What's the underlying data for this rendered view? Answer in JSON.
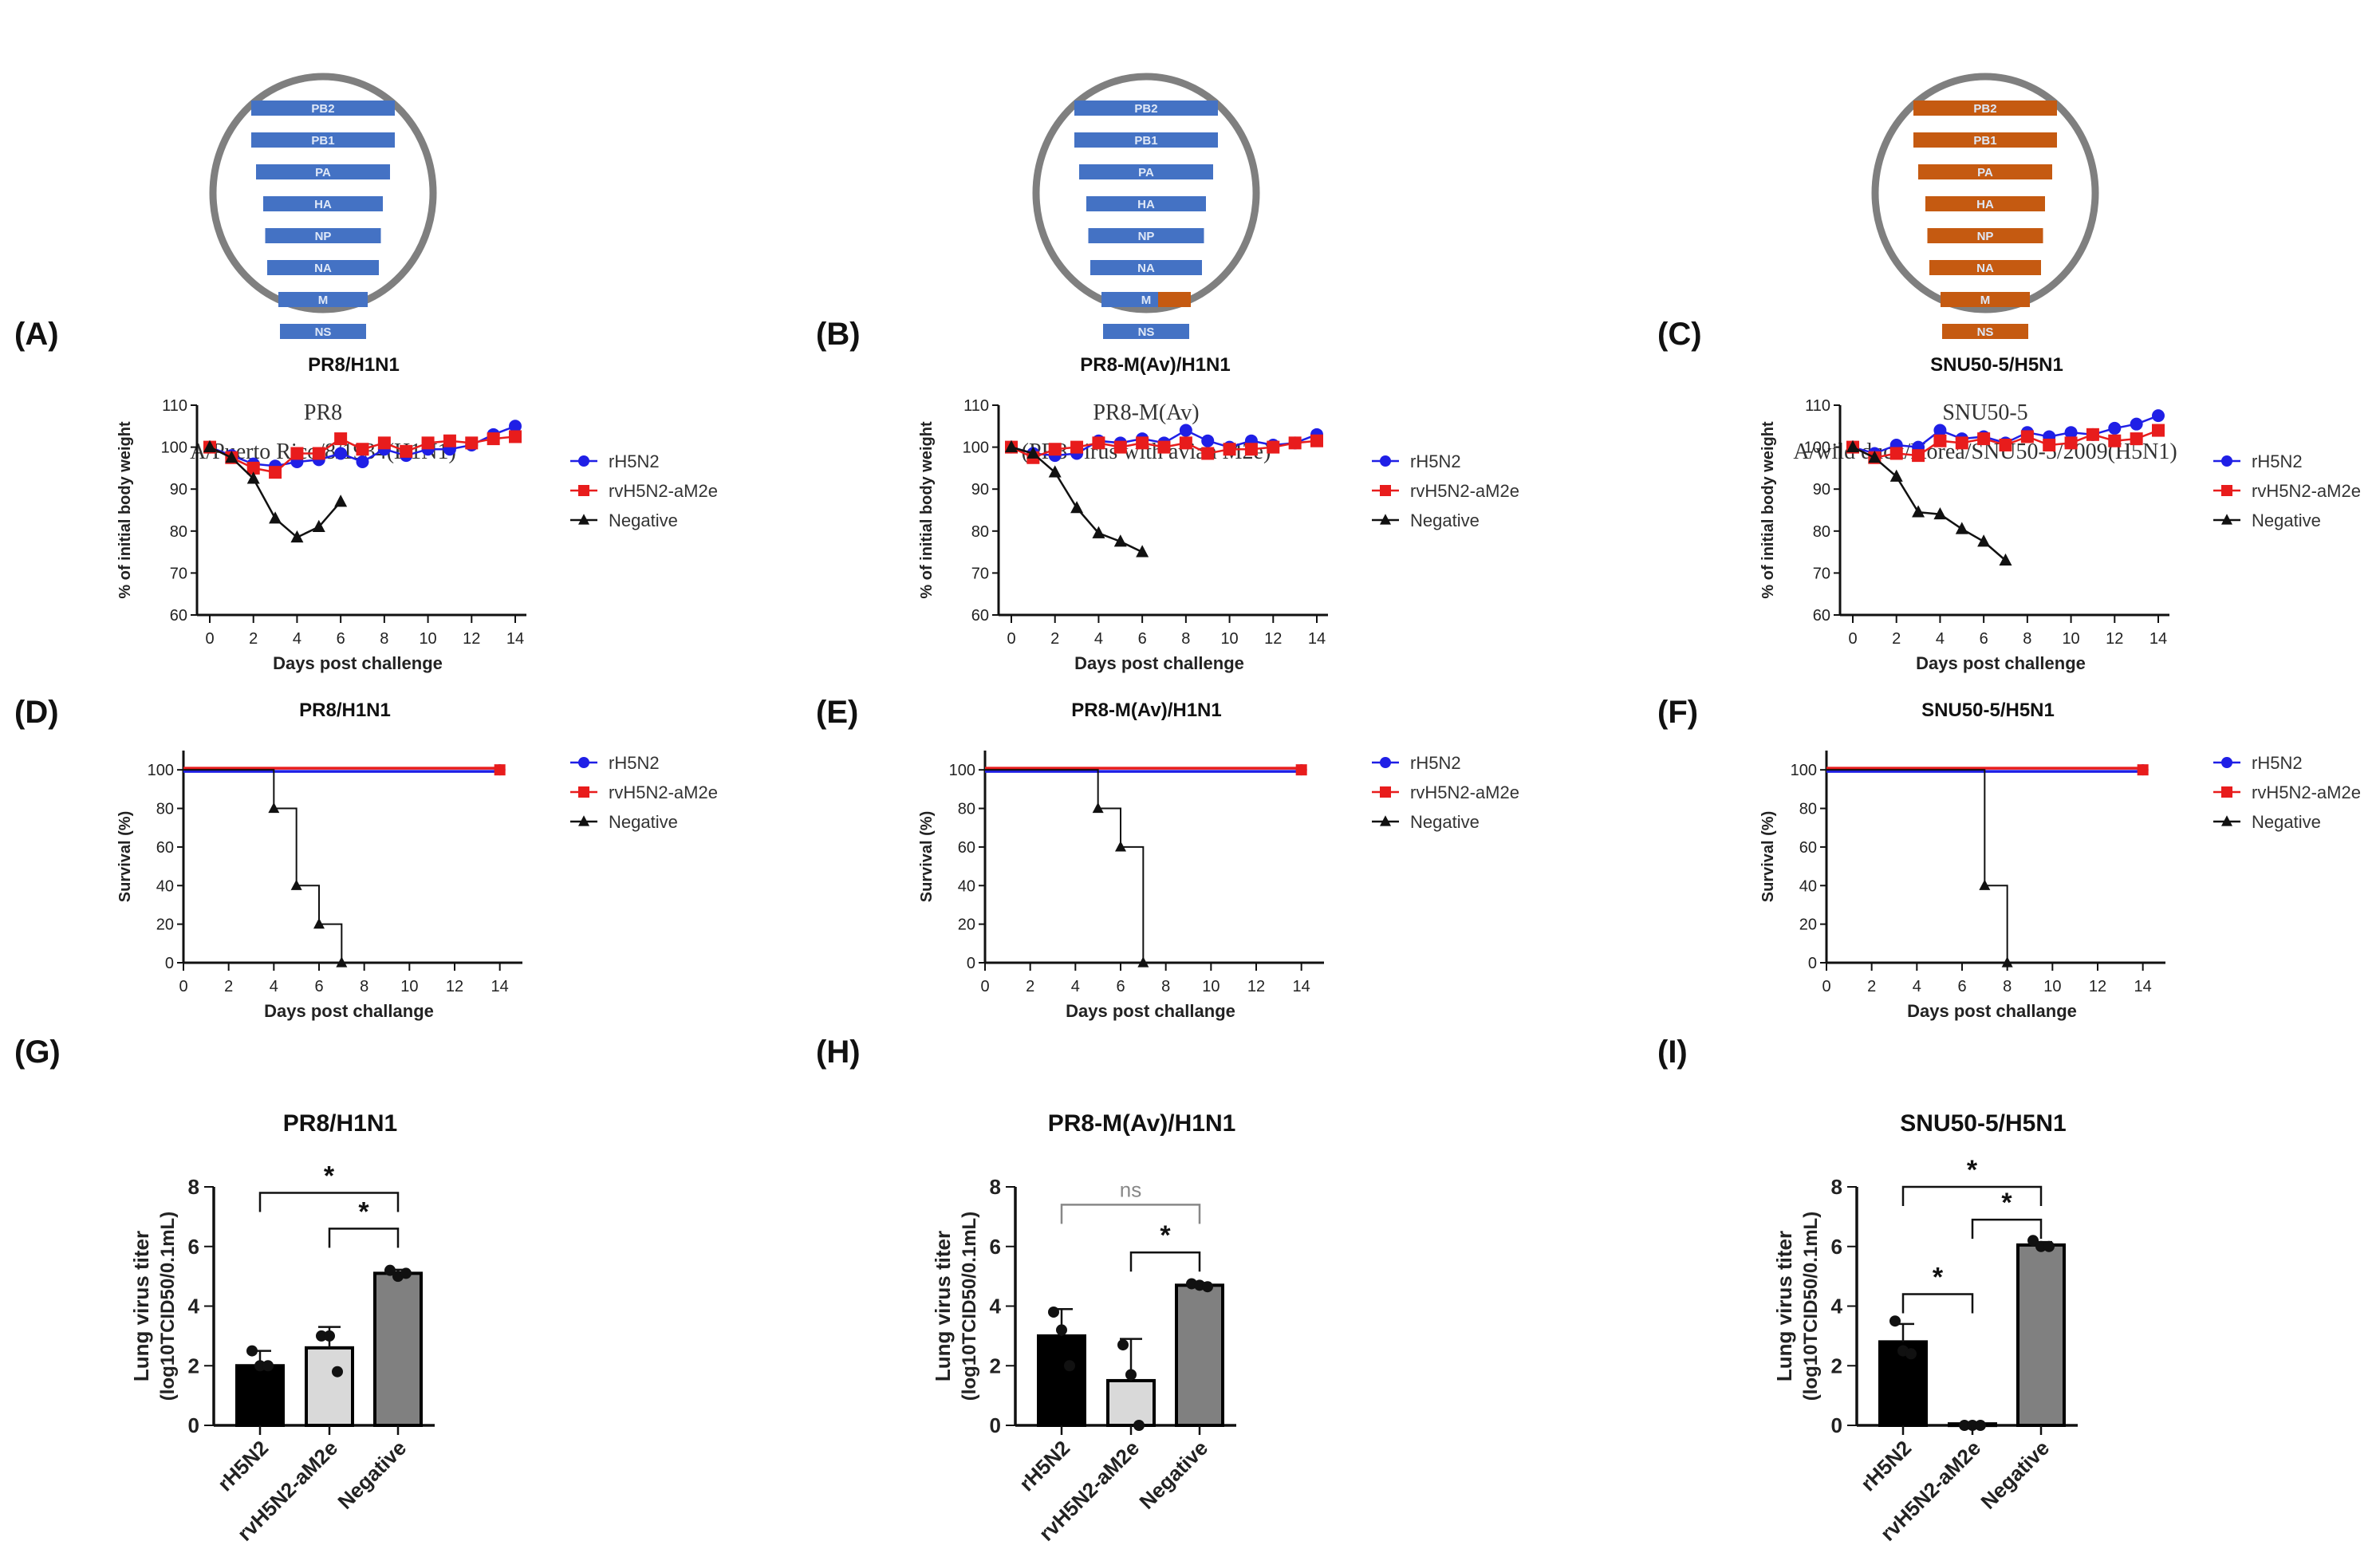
{
  "colors": {
    "blue": "#1f1fe6",
    "red": "#e81c1c",
    "black": "#111111",
    "segment_blue": "#4472c4",
    "segment_orange": "#c55a11",
    "circle": "#7f7f7f",
    "bar_black": "#000000",
    "bar_light": "#d9d9d9",
    "bar_gray": "#808080"
  },
  "viruses": [
    {
      "name": "PR8",
      "strain": "A/Puerto Rico/8/1934(H1N1)",
      "segments": [
        "PB2",
        "PB1",
        "PA",
        "HA",
        "NP",
        "NA",
        "M",
        "NS"
      ],
      "segment_color": "blue",
      "avian_m_tip": false
    },
    {
      "name": "PR8-M(Av)",
      "strain": "(PR8 virus with avian M2e)",
      "segments": [
        "PB2",
        "PB1",
        "PA",
        "HA",
        "NP",
        "NA",
        "M",
        "NS"
      ],
      "segment_color": "blue",
      "avian_m_tip": true
    },
    {
      "name": "SNU50-5",
      "strain": "A/wild duck/Korea/SNU50-5/2009(H5N1)",
      "segments": [
        "PB2",
        "PB1",
        "PA",
        "HA",
        "NP",
        "NA",
        "M",
        "NS"
      ],
      "segment_color": "orange",
      "avian_m_tip": false
    }
  ],
  "legend": [
    "rH5N2",
    "rvH5N2-aM2e",
    "Negative"
  ],
  "chart_data": [
    {
      "panel": "(A)",
      "type": "line",
      "title": "PR8/H1N1",
      "xlabel": "Days post challenge",
      "ylabel": "% of initial body weight",
      "ylim": [
        60,
        110
      ],
      "yticks": [
        60,
        70,
        80,
        90,
        100,
        110
      ],
      "xlim": [
        0,
        14
      ],
      "xticks": [
        0,
        2,
        4,
        6,
        8,
        10,
        12,
        14
      ],
      "legend_placement": "right",
      "series": [
        {
          "name": "rH5N2",
          "marker": "circle",
          "color": "blue",
          "x": [
            0,
            1,
            2,
            3,
            4,
            5,
            6,
            7,
            8,
            9,
            10,
            11,
            12,
            13,
            14
          ],
          "values": [
            100,
            98,
            96,
            95.5,
            96.5,
            97,
            98.5,
            96.5,
            99.5,
            98,
            99.5,
            99.5,
            100.5,
            103,
            105
          ]
        },
        {
          "name": "rvH5N2-aM2e",
          "marker": "square",
          "color": "red",
          "x": [
            0,
            1,
            2,
            3,
            4,
            5,
            6,
            7,
            8,
            9,
            10,
            11,
            12,
            13,
            14
          ],
          "values": [
            100,
            97.5,
            95,
            94,
            98.5,
            98.5,
            102,
            99.5,
            101,
            99,
            101,
            101.5,
            101,
            102,
            102.5
          ]
        },
        {
          "name": "Negative",
          "marker": "triangle",
          "color": "black",
          "x": [
            0,
            1,
            2,
            3,
            4,
            5,
            6
          ],
          "values": [
            100,
            97.5,
            92.5,
            83,
            78.5,
            81,
            87
          ]
        }
      ]
    },
    {
      "panel": "(B)",
      "type": "line",
      "title": "PR8-M(Av)/H1N1",
      "xlabel": "Days post challenge",
      "ylabel": "% of initial body weight",
      "ylim": [
        60,
        110
      ],
      "yticks": [
        60,
        70,
        80,
        90,
        100,
        110
      ],
      "xlim": [
        0,
        14
      ],
      "xticks": [
        0,
        2,
        4,
        6,
        8,
        10,
        12,
        14
      ],
      "legend_placement": "right",
      "series": [
        {
          "name": "rH5N2",
          "marker": "circle",
          "color": "blue",
          "x": [
            0,
            1,
            2,
            3,
            4,
            5,
            6,
            7,
            8,
            9,
            10,
            11,
            12,
            13,
            14
          ],
          "values": [
            100,
            98.5,
            98,
            98.5,
            101.5,
            101,
            102,
            101,
            104,
            101.5,
            100,
            101.5,
            100.5,
            101,
            103
          ]
        },
        {
          "name": "rvH5N2-aM2e",
          "marker": "square",
          "color": "red",
          "x": [
            0,
            1,
            2,
            3,
            4,
            5,
            6,
            7,
            8,
            9,
            10,
            11,
            12,
            13,
            14
          ],
          "values": [
            100,
            97.5,
            99.5,
            100,
            101,
            100,
            101,
            100,
            101,
            98.5,
            99.5,
            99.5,
            100,
            101,
            101.5
          ]
        },
        {
          "name": "Negative",
          "marker": "triangle",
          "color": "black",
          "x": [
            0,
            1,
            2,
            3,
            4,
            5,
            6
          ],
          "values": [
            100,
            98.5,
            94,
            85.5,
            79.5,
            77.5,
            75
          ]
        }
      ]
    },
    {
      "panel": "(C)",
      "type": "line",
      "title": "SNU50-5/H5N1",
      "xlabel": "Days post challenge",
      "ylabel": "% of initial body weight",
      "ylim": [
        60,
        110
      ],
      "yticks": [
        60,
        70,
        80,
        90,
        100,
        110
      ],
      "xlim": [
        0,
        14
      ],
      "xticks": [
        0,
        2,
        4,
        6,
        8,
        10,
        12,
        14
      ],
      "legend_placement": "right",
      "series": [
        {
          "name": "rH5N2",
          "marker": "circle",
          "color": "blue",
          "x": [
            0,
            1,
            2,
            3,
            4,
            5,
            6,
            7,
            8,
            9,
            10,
            11,
            12,
            13,
            14
          ],
          "values": [
            100,
            98.5,
            100.5,
            100,
            104,
            102,
            102.5,
            101,
            103.5,
            102.5,
            103.5,
            103,
            104.5,
            105.5,
            107.5
          ]
        },
        {
          "name": "rvH5N2-aM2e",
          "marker": "square",
          "color": "red",
          "x": [
            0,
            1,
            2,
            3,
            4,
            5,
            6,
            7,
            8,
            9,
            10,
            11,
            12,
            13,
            14
          ],
          "values": [
            100,
            97.5,
            98.5,
            98,
            101.5,
            101,
            102,
            100.5,
            102.5,
            100.5,
            101,
            103,
            101.5,
            102,
            104
          ]
        },
        {
          "name": "Negative",
          "marker": "triangle",
          "color": "black",
          "x": [
            0,
            1,
            2,
            3,
            4,
            5,
            6,
            7
          ],
          "values": [
            100,
            97.5,
            93,
            84.5,
            84,
            80.5,
            77.5,
            73
          ]
        }
      ]
    },
    {
      "panel": "(D)",
      "type": "line",
      "subtype": "survival-step",
      "title": "PR8/H1N1",
      "xlabel": "Days post challange",
      "ylabel": "Survival (%)",
      "ylim": [
        0,
        110
      ],
      "yticks": [
        0,
        20,
        40,
        60,
        80,
        100
      ],
      "xlim": [
        0,
        15
      ],
      "xticks": [
        0,
        2,
        4,
        6,
        8,
        10,
        12,
        14
      ],
      "legend_placement": "right",
      "series": [
        {
          "name": "rH5N2",
          "color": "blue",
          "steps": [
            [
              0,
              100
            ],
            [
              14,
              100
            ]
          ],
          "markers": [
            [
              14,
              100
            ]
          ]
        },
        {
          "name": "rvH5N2-aM2e",
          "color": "red",
          "steps": [
            [
              0,
              100
            ],
            [
              14,
              100
            ]
          ],
          "markers": [
            [
              14,
              100
            ]
          ]
        },
        {
          "name": "Negative",
          "color": "black",
          "steps": [
            [
              0,
              100
            ],
            [
              4,
              100
            ],
            [
              4,
              80
            ],
            [
              5,
              80
            ],
            [
              5,
              40
            ],
            [
              6,
              40
            ],
            [
              6,
              20
            ],
            [
              7,
              20
            ],
            [
              7,
              0
            ]
          ],
          "markers": [
            [
              4,
              80
            ],
            [
              5,
              40
            ],
            [
              6,
              20
            ],
            [
              7,
              0
            ]
          ]
        }
      ]
    },
    {
      "panel": "(E)",
      "type": "line",
      "subtype": "survival-step",
      "title": "PR8-M(Av)/H1N1",
      "xlabel": "Days post challange",
      "ylabel": "Survival (%)",
      "ylim": [
        0,
        110
      ],
      "yticks": [
        0,
        20,
        40,
        60,
        80,
        100
      ],
      "xlim": [
        0,
        15
      ],
      "xticks": [
        0,
        2,
        4,
        6,
        8,
        10,
        12,
        14
      ],
      "legend_placement": "right",
      "series": [
        {
          "name": "rH5N2",
          "color": "blue",
          "steps": [
            [
              0,
              100
            ],
            [
              14,
              100
            ]
          ],
          "markers": [
            [
              14,
              100
            ]
          ]
        },
        {
          "name": "rvH5N2-aM2e",
          "color": "red",
          "steps": [
            [
              0,
              100
            ],
            [
              14,
              100
            ]
          ],
          "markers": [
            [
              14,
              100
            ]
          ]
        },
        {
          "name": "Negative",
          "color": "black",
          "steps": [
            [
              0,
              100
            ],
            [
              5,
              100
            ],
            [
              5,
              80
            ],
            [
              6,
              80
            ],
            [
              6,
              60
            ],
            [
              7,
              60
            ],
            [
              7,
              0
            ]
          ],
          "markers": [
            [
              5,
              80
            ],
            [
              6,
              60
            ],
            [
              7,
              0
            ]
          ]
        }
      ]
    },
    {
      "panel": "(F)",
      "type": "line",
      "subtype": "survival-step",
      "title": "SNU50-5/H5N1",
      "xlabel": "Days post challange",
      "ylabel": "Survival (%)",
      "ylim": [
        0,
        110
      ],
      "yticks": [
        0,
        20,
        40,
        60,
        80,
        100
      ],
      "xlim": [
        0,
        15
      ],
      "xticks": [
        0,
        2,
        4,
        6,
        8,
        10,
        12,
        14
      ],
      "legend_placement": "right",
      "series": [
        {
          "name": "rH5N2",
          "color": "blue",
          "steps": [
            [
              0,
              100
            ],
            [
              14,
              100
            ]
          ],
          "markers": [
            [
              14,
              100
            ]
          ]
        },
        {
          "name": "rvH5N2-aM2e",
          "color": "red",
          "steps": [
            [
              0,
              100
            ],
            [
              14,
              100
            ]
          ],
          "markers": [
            [
              14,
              100
            ]
          ]
        },
        {
          "name": "Negative",
          "color": "black",
          "steps": [
            [
              0,
              100
            ],
            [
              7,
              100
            ],
            [
              7,
              40
            ],
            [
              8,
              40
            ],
            [
              8,
              0
            ]
          ],
          "markers": [
            [
              7,
              40
            ],
            [
              8,
              0
            ]
          ]
        }
      ]
    },
    {
      "panel": "(G)",
      "type": "bar",
      "title": "PR8/H1N1",
      "ylabel": "Lung virus titer",
      "ylabel2": "(log10TCID50/0.1mL)",
      "ylim": [
        0,
        8
      ],
      "yticks": [
        0,
        2,
        4,
        6,
        8
      ],
      "categories": [
        "rH5N2",
        "rvH5N2-aM2e",
        "Negative"
      ],
      "values": [
        2.0,
        2.6,
        5.1
      ],
      "errors": [
        0.5,
        0.7,
        0.12
      ],
      "bar_colors": [
        "bar_black",
        "bar_light",
        "bar_gray"
      ],
      "points": [
        [
          2.5,
          2.0,
          2.0
        ],
        [
          3.0,
          3.0,
          1.8
        ],
        [
          5.2,
          5.0,
          5.1
        ]
      ],
      "significance": [
        {
          "from": 0,
          "to": 2,
          "label": "*",
          "level": 7.8
        },
        {
          "from": 1,
          "to": 2,
          "label": "*",
          "level": 6.6
        }
      ]
    },
    {
      "panel": "(H)",
      "type": "bar",
      "title": "PR8-M(Av)/H1N1",
      "ylabel": "Lung virus titer",
      "ylabel2": "(log10TCID50/0.1mL)",
      "ylim": [
        0,
        8
      ],
      "yticks": [
        0,
        2,
        4,
        6,
        8
      ],
      "categories": [
        "rH5N2",
        "rvH5N2-aM2e",
        "Negative"
      ],
      "values": [
        3.0,
        1.5,
        4.7
      ],
      "errors": [
        0.9,
        1.4,
        0.08
      ],
      "bar_colors": [
        "bar_black",
        "bar_light",
        "bar_gray"
      ],
      "points": [
        [
          3.8,
          3.2,
          2.0
        ],
        [
          2.7,
          1.7,
          0.0
        ],
        [
          4.75,
          4.7,
          4.65
        ]
      ],
      "significance": [
        {
          "from": 0,
          "to": 2,
          "label": "ns",
          "level": 7.4
        },
        {
          "from": 1,
          "to": 2,
          "label": "*",
          "level": 5.8
        }
      ]
    },
    {
      "panel": "(I)",
      "type": "bar",
      "title": "SNU50-5/H5N1",
      "ylabel": "Lung virus titer",
      "ylabel2": "(log10TCID50/0.1mL)",
      "ylim": [
        0,
        8
      ],
      "yticks": [
        0,
        2,
        4,
        6,
        8
      ],
      "categories": [
        "rH5N2",
        "rvH5N2-aM2e",
        "Negative"
      ],
      "values": [
        2.8,
        0.05,
        6.05
      ],
      "errors": [
        0.6,
        0.0,
        0.1
      ],
      "bar_colors": [
        "bar_black",
        "bar_light",
        "bar_gray"
      ],
      "points": [
        [
          3.5,
          2.5,
          2.4
        ],
        [
          0.0,
          0.0,
          0.0
        ],
        [
          6.2,
          6.0,
          6.0
        ]
      ],
      "significance": [
        {
          "from": 0,
          "to": 2,
          "label": "*",
          "level": 8.0
        },
        {
          "from": 1,
          "to": 2,
          "label": "*",
          "level": 6.9
        },
        {
          "from": 0,
          "to": 1,
          "label": "*",
          "level": 4.4
        }
      ]
    }
  ]
}
